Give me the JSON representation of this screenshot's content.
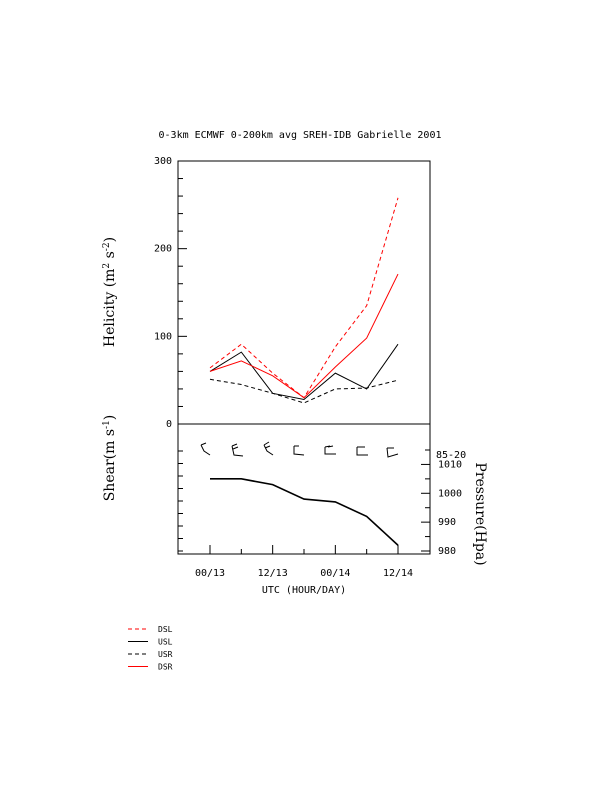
{
  "chart_data": [
    {
      "type": "line",
      "title": "0-3km ECMWF 0-200km avg SREH-IDB Gabrielle 2001",
      "ylabel_text": "Helicity (m",
      "ylabel_sup1": "2",
      "ylabel_mid": " s",
      "ylabel_sup2": "-2",
      "ylabel_end": ")",
      "ylim": [
        0,
        300
      ],
      "yticks": [
        0,
        100,
        200,
        300
      ],
      "x": [
        0,
        6,
        12,
        18,
        24,
        30,
        36
      ],
      "series": [
        {
          "name": "DSL",
          "color": "#ff0000",
          "dash": "4,3",
          "values": [
            64,
            91,
            58,
            30,
            88,
            135,
            258
          ]
        },
        {
          "name": "USL",
          "color": "#000000",
          "dash": "",
          "values": [
            60,
            82,
            35,
            28,
            58,
            40,
            91
          ]
        },
        {
          "name": "USR",
          "color": "#000000",
          "dash": "4,3",
          "values": [
            51,
            45,
            35,
            24,
            40,
            41,
            50
          ]
        },
        {
          "name": "DSR",
          "color": "#ff0000",
          "dash": "",
          "values": [
            60,
            72,
            55,
            30,
            65,
            98,
            171
          ]
        }
      ]
    },
    {
      "type": "line",
      "ylabel_text": "Shear(m s",
      "ylabel_sup": "-1",
      "ylabel_end": ")",
      "right_label": "Pressure(Hpa)",
      "shear_label": "85-20",
      "ylim": [
        980,
        1015
      ],
      "yticks": [
        980,
        990,
        1000,
        1010
      ],
      "x": [
        0,
        6,
        12,
        18,
        24,
        30,
        36
      ],
      "series": [
        {
          "name": "Pressure",
          "color": "#000000",
          "values": [
            1005,
            1005,
            1003,
            998,
            997,
            992,
            982
          ]
        }
      ],
      "xlabel": "UTC (HOUR/DAY)",
      "xtick_labels": [
        {
          "x": 0,
          "label": "00/13"
        },
        {
          "x": 12,
          "label": "12/13"
        },
        {
          "x": 24,
          "label": "00/14"
        },
        {
          "x": 36,
          "label": "12/14"
        }
      ]
    }
  ],
  "legend": [
    {
      "label": "DSL",
      "color": "#ff0000",
      "dash": "4,3"
    },
    {
      "label": "USL",
      "color": "#000000",
      "dash": ""
    },
    {
      "label": "USR",
      "color": "#000000",
      "dash": "4,3"
    },
    {
      "label": "DSR",
      "color": "#ff0000",
      "dash": ""
    }
  ]
}
